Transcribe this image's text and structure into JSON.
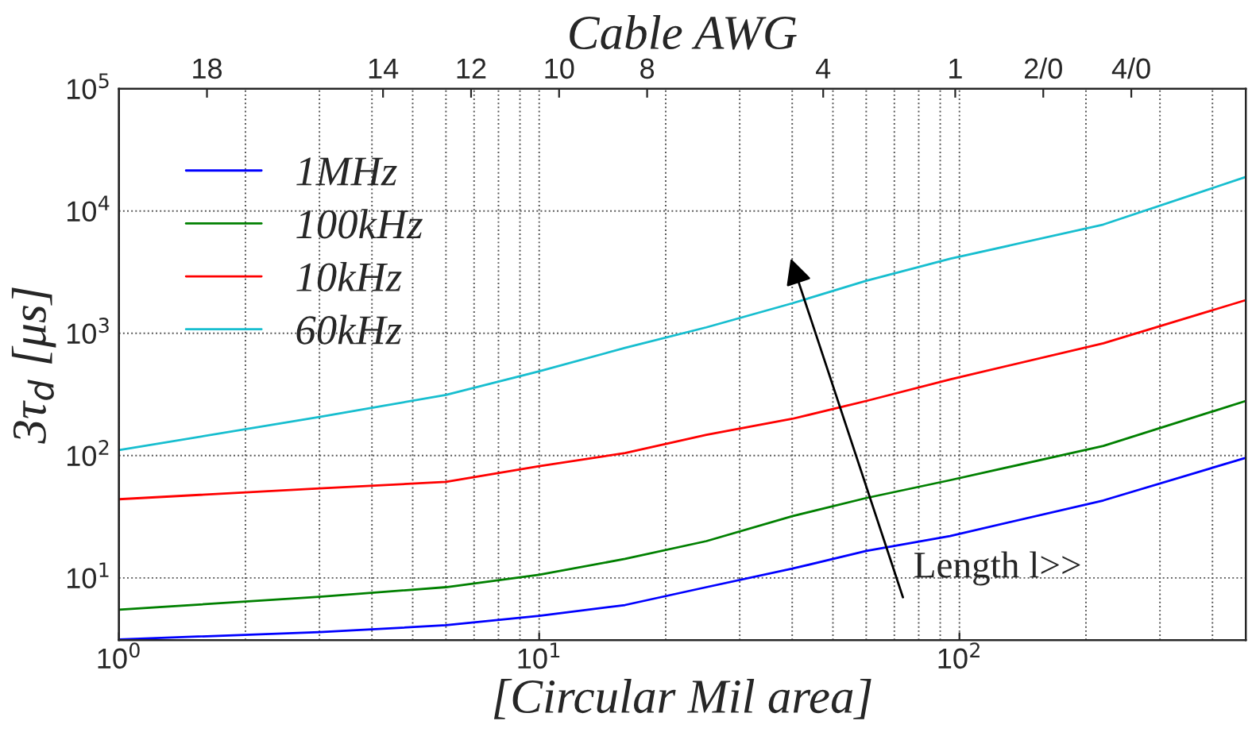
{
  "chart_data": {
    "type": "line",
    "xlabel": "[Circular Mil area]",
    "ylabel": "3τ$_{d}$ [μs]",
    "x2label": "Cable AWG",
    "log": "xy",
    "grid": true,
    "legend": "top left",
    "xlim": [
      1,
      480
    ],
    "ylim": [
      3.1,
      100000
    ],
    "xticks": [
      {
        "value": 1,
        "label": "10$^{0}$"
      },
      {
        "value": 10,
        "label": "10$^{1}$"
      },
      {
        "value": 100,
        "label": "10$^{2}$"
      }
    ],
    "yticks": [
      {
        "value": 10,
        "label": "10$^{1}$"
      },
      {
        "value": 100,
        "label": "10$^{2}$"
      },
      {
        "value": 1000,
        "label": "10$^{3}$"
      },
      {
        "value": 10000,
        "label": "10$^{4}$"
      },
      {
        "value": 100000,
        "label": "10$^{5}$"
      }
    ],
    "x2lim": [
      20,
      -5.6
    ],
    "x2ticks": [
      18,
      14,
      12,
      10,
      8,
      4,
      1,
      {
        "value": -1,
        "label": "2/0"
      },
      {
        "value": -3,
        "label": "4/0"
      }
    ],
    "x": [
      1,
      3,
      6,
      10,
      16,
      25,
      40,
      60,
      95,
      220,
      480
    ],
    "series": [
      {
        "name": "1MHz",
        "color": "#0000ff",
        "values": [
          3.14,
          3.6,
          4.1,
          4.9,
          6.0,
          8.4,
          11.9,
          16.6,
          22,
          43,
          96
        ]
      },
      {
        "name": "100kHz",
        "color": "#008000",
        "values": [
          5.5,
          7.0,
          8.4,
          10.6,
          14.3,
          20,
          32,
          45,
          63,
          120,
          280
        ]
      },
      {
        "name": "10kHz",
        "color": "#ff0000",
        "values": [
          44,
          54,
          61,
          82,
          105,
          148,
          200,
          280,
          420,
          830,
          1870
        ]
      },
      {
        "name": "60kHz",
        "color": "#17becf",
        "values": [
          111,
          207,
          314,
          490,
          760,
          1120,
          1760,
          2690,
          4070,
          7760,
          19000
        ]
      }
    ],
    "annotations": [
      "Length l>>"
    ]
  }
}
